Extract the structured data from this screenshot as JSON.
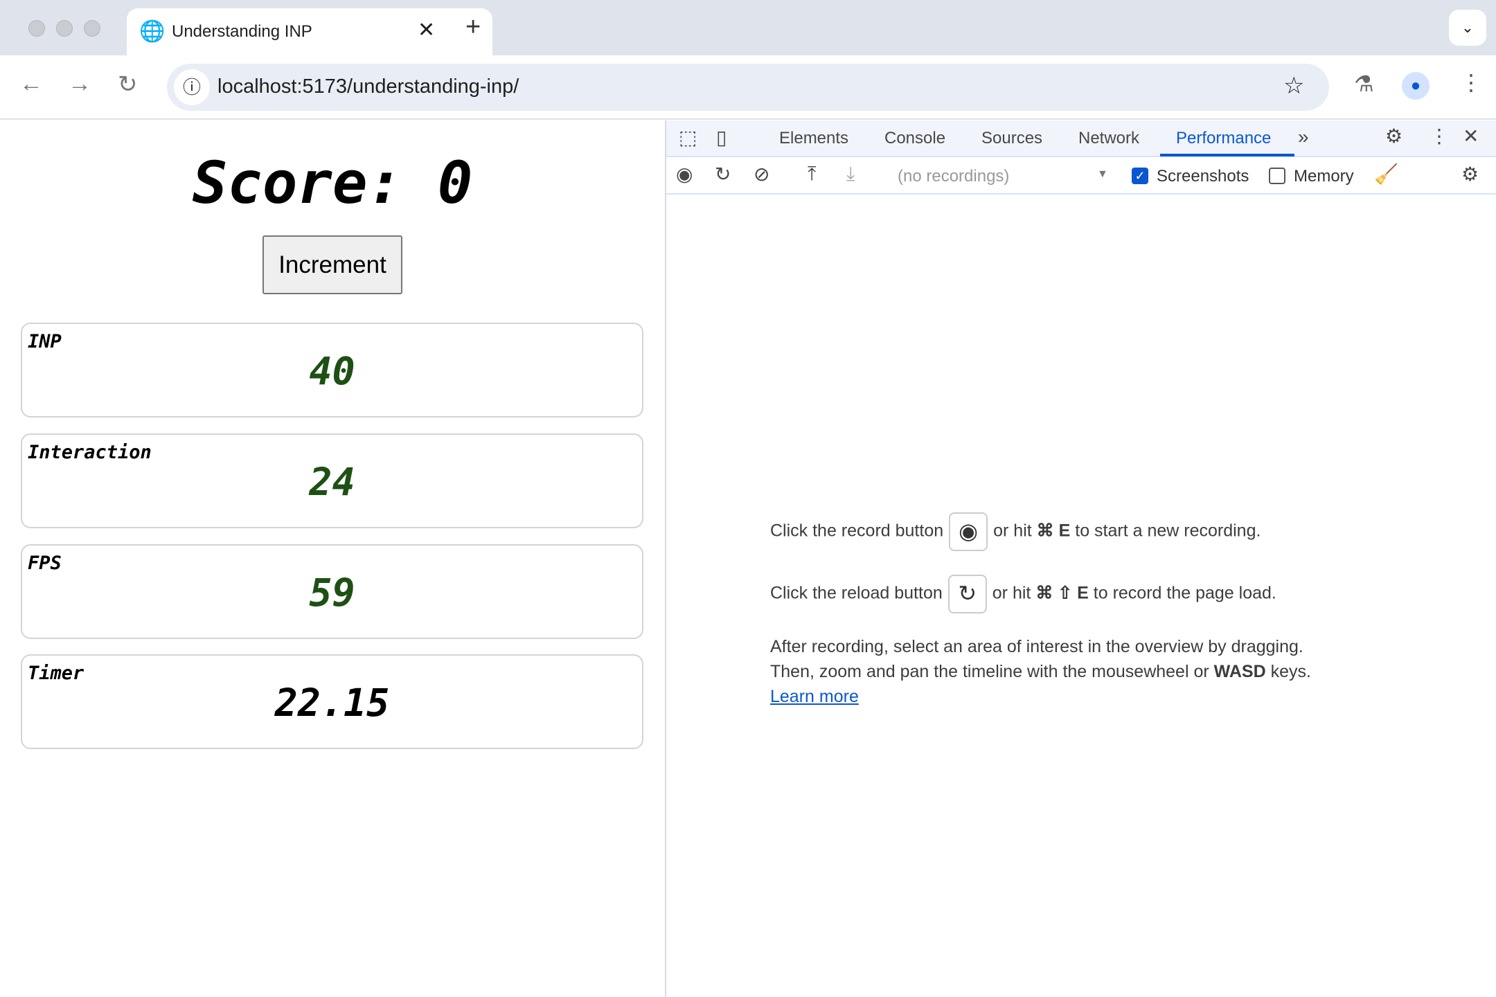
{
  "browser": {
    "tab_title": "Understanding INP",
    "url": "localhost:5173/understanding-inp/"
  },
  "page": {
    "score_label": "Score:",
    "score_value": "0",
    "increment_label": "Increment",
    "cards": [
      {
        "label": "INP",
        "value": "40"
      },
      {
        "label": "Interaction",
        "value": "24"
      },
      {
        "label": "FPS",
        "value": "59"
      },
      {
        "label": "Timer",
        "value": "22.15"
      }
    ]
  },
  "devtools": {
    "tabs": [
      "Elements",
      "Console",
      "Sources",
      "Network",
      "Performance"
    ],
    "active_tab": "Performance",
    "recordings_placeholder": "(no recordings)",
    "screenshots_label": "Screenshots",
    "screenshots_checked": true,
    "memory_label": "Memory",
    "memory_checked": false,
    "msg1_a": "Click the record button",
    "msg1_b": "or hit",
    "msg1_key": "⌘ E",
    "msg1_c": "to start a new recording.",
    "msg2_a": "Click the reload button",
    "msg2_b": "or hit",
    "msg2_key": "⌘ ⇧ E",
    "msg2_c": "to record the page load.",
    "msg3": "After recording, select an area of interest in the overview by dragging.",
    "msg4_a": "Then, zoom and pan the timeline with the mousewheel or",
    "msg4_key": "WASD",
    "msg4_b": "keys.",
    "learn_more": "Learn more"
  },
  "colors": {
    "accent": "#0b57d0",
    "value_green": "#1e5014"
  }
}
